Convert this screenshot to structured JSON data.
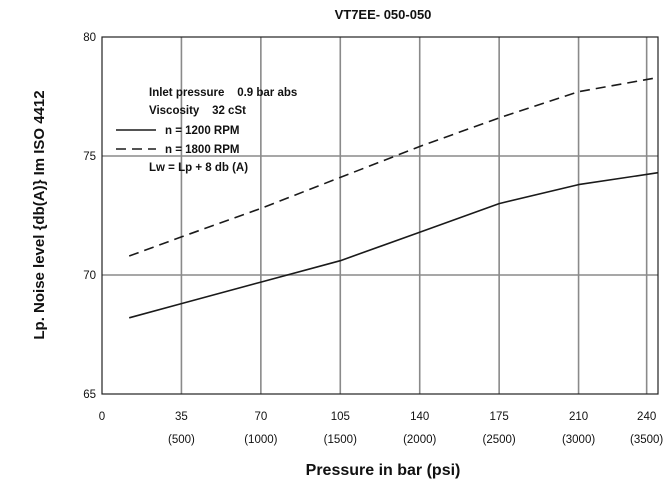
{
  "chart_data": {
    "type": "line",
    "title": "VT7EE- 050-050",
    "xlabel": "Pressure in bar (psi)",
    "ylabel": "Lp. Noise level {db(A)} Im ISO 4412",
    "xlim": [
      0,
      245
    ],
    "ylim": [
      65,
      80
    ],
    "x_ticks": [
      {
        "value": 0,
        "label": "0",
        "sublabel": ""
      },
      {
        "value": 35,
        "label": "35",
        "sublabel": "(500)"
      },
      {
        "value": 70,
        "label": "70",
        "sublabel": "(1000)"
      },
      {
        "value": 105,
        "label": "105",
        "sublabel": "(1500)"
      },
      {
        "value": 140,
        "label": "140",
        "sublabel": "(2000)"
      },
      {
        "value": 175,
        "label": "175",
        "sublabel": "(2500)"
      },
      {
        "value": 210,
        "label": "210",
        "sublabel": "(3000)"
      },
      {
        "value": 240,
        "label": "240",
        "sublabel": "(3500)"
      }
    ],
    "y_ticks": [
      "65",
      "70",
      "75",
      "80"
    ],
    "grid": true,
    "series": [
      {
        "name": "n = 1200 RPM",
        "style": "solid",
        "color": "#1a1a1a",
        "x": [
          12,
          35,
          70,
          105,
          140,
          175,
          210,
          245
        ],
        "y": [
          68.2,
          68.8,
          69.7,
          70.6,
          71.8,
          73.0,
          73.8,
          74.3
        ]
      },
      {
        "name": "n = 1800 RPM",
        "style": "dashed",
        "color": "#1a1a1a",
        "x": [
          12,
          35,
          70,
          105,
          140,
          175,
          210,
          245
        ],
        "y": [
          70.8,
          71.6,
          72.8,
          74.1,
          75.4,
          76.6,
          77.7,
          78.3
        ]
      }
    ],
    "annotations": [
      {
        "text": "Inlet pressure    0.9 bar abs"
      },
      {
        "text": "Viscosity    32 cSt"
      },
      {
        "text": "Lw = Lp + 8 db (A)"
      }
    ]
  }
}
